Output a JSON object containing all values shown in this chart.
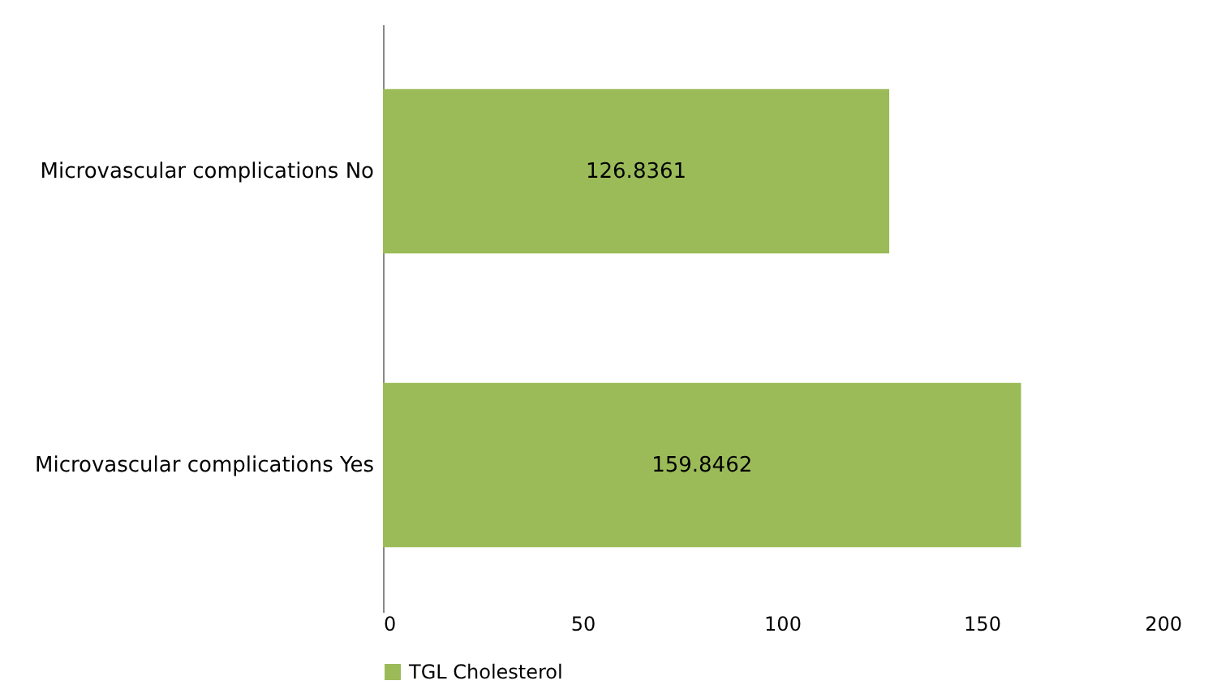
{
  "chart_data": {
    "type": "bar",
    "orientation": "horizontal",
    "categories": [
      "Microvascular complications No",
      "Microvascular complications Yes"
    ],
    "series": [
      {
        "name": "TGL Cholesterol",
        "color": "#9bbb59",
        "values": [
          126.8361,
          159.8462
        ]
      }
    ],
    "xlim": [
      0,
      200
    ],
    "xticks": [
      0,
      50,
      100,
      150,
      200
    ],
    "grid": false,
    "legend": "bottom",
    "data_labels": true
  }
}
